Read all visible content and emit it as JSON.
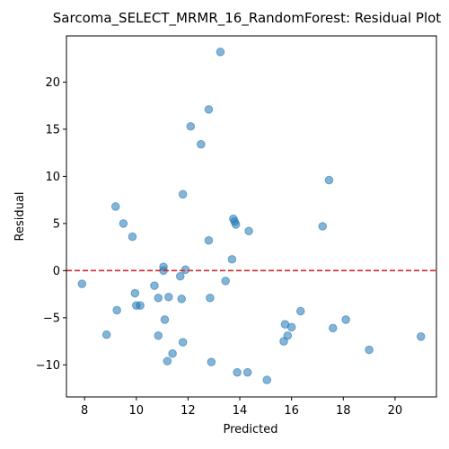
{
  "chart_data": {
    "type": "scatter",
    "title": "Sarcoma_SELECT_MRMR_16_RandomForest: Residual Plot",
    "xlabel": "Predicted",
    "ylabel": "Residual",
    "xlim": [
      7.3,
      21.6
    ],
    "ylim": [
      -13.4,
      24.9
    ],
    "x_ticks": [
      8,
      10,
      12,
      14,
      16,
      18,
      20
    ],
    "y_ticks": [
      -10,
      -5,
      0,
      5,
      10,
      15,
      20
    ],
    "x_tick_labels": [
      "8",
      "10",
      "12",
      "14",
      "16",
      "18",
      "20"
    ],
    "y_tick_labels": [
      "−10",
      "−5",
      "0",
      "5",
      "10",
      "15",
      "20"
    ],
    "grid": false,
    "reference_line": {
      "y": 0,
      "style": "dashed",
      "color": "#d62728"
    },
    "point_color": "#1f77b4",
    "points": [
      {
        "x": 13.25,
        "y": 23.2
      },
      {
        "x": 12.8,
        "y": 17.1
      },
      {
        "x": 12.1,
        "y": 15.3
      },
      {
        "x": 12.5,
        "y": 13.4
      },
      {
        "x": 17.45,
        "y": 9.6
      },
      {
        "x": 11.8,
        "y": 8.1
      },
      {
        "x": 9.2,
        "y": 6.8
      },
      {
        "x": 13.75,
        "y": 5.5
      },
      {
        "x": 13.8,
        "y": 5.2
      },
      {
        "x": 13.85,
        "y": 4.9
      },
      {
        "x": 9.5,
        "y": 5.0
      },
      {
        "x": 17.2,
        "y": 4.7
      },
      {
        "x": 14.35,
        "y": 4.2
      },
      {
        "x": 9.85,
        "y": 3.6
      },
      {
        "x": 12.8,
        "y": 3.2
      },
      {
        "x": 13.7,
        "y": 1.2
      },
      {
        "x": 11.05,
        "y": 0.4
      },
      {
        "x": 11.05,
        "y": 0.0
      },
      {
        "x": 11.9,
        "y": 0.1
      },
      {
        "x": 11.7,
        "y": -0.6
      },
      {
        "x": 13.45,
        "y": -1.1
      },
      {
        "x": 7.9,
        "y": -1.4
      },
      {
        "x": 10.7,
        "y": -1.6
      },
      {
        "x": 9.95,
        "y": -2.4
      },
      {
        "x": 10.85,
        "y": -2.9
      },
      {
        "x": 11.25,
        "y": -2.8
      },
      {
        "x": 11.75,
        "y": -3.0
      },
      {
        "x": 12.85,
        "y": -2.9
      },
      {
        "x": 10.0,
        "y": -3.7
      },
      {
        "x": 10.15,
        "y": -3.7
      },
      {
        "x": 9.25,
        "y": -4.2
      },
      {
        "x": 16.35,
        "y": -4.3
      },
      {
        "x": 11.1,
        "y": -5.2
      },
      {
        "x": 18.1,
        "y": -5.2
      },
      {
        "x": 15.75,
        "y": -5.7
      },
      {
        "x": 16.0,
        "y": -6.0
      },
      {
        "x": 17.6,
        "y": -6.1
      },
      {
        "x": 8.85,
        "y": -6.8
      },
      {
        "x": 10.85,
        "y": -6.9
      },
      {
        "x": 15.85,
        "y": -6.9
      },
      {
        "x": 21.0,
        "y": -7.0
      },
      {
        "x": 15.7,
        "y": -7.5
      },
      {
        "x": 11.8,
        "y": -7.6
      },
      {
        "x": 19.0,
        "y": -8.4
      },
      {
        "x": 11.4,
        "y": -8.8
      },
      {
        "x": 11.2,
        "y": -9.6
      },
      {
        "x": 12.9,
        "y": -9.7
      },
      {
        "x": 13.9,
        "y": -10.8
      },
      {
        "x": 14.3,
        "y": -10.8
      },
      {
        "x": 15.05,
        "y": -11.6
      }
    ]
  }
}
